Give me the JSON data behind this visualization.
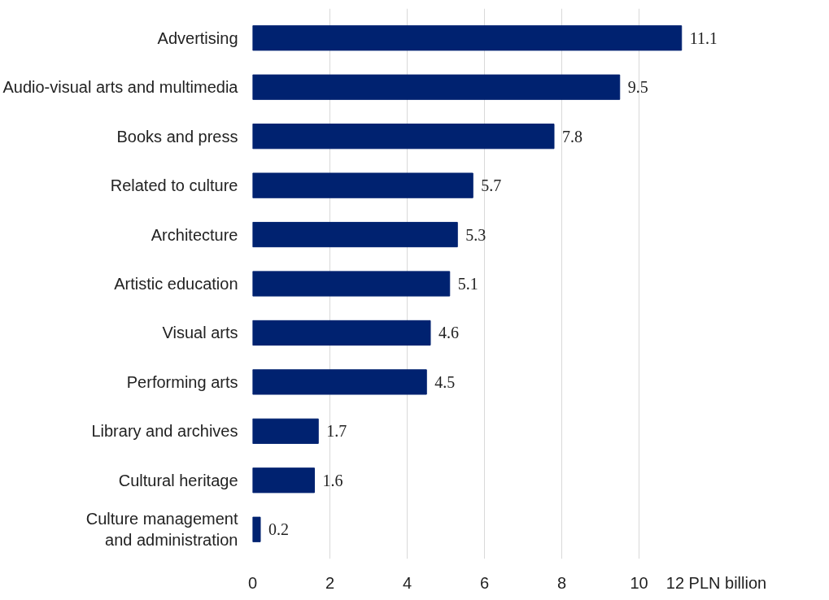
{
  "chart_data": {
    "type": "bar",
    "orientation": "horizontal",
    "categories": [
      "Advertising",
      "Audio-visual arts and multimedia",
      "Books and press",
      "Related to culture",
      "Architecture",
      "Artistic education",
      "Visual arts",
      "Performing arts",
      "Library and archives",
      "Cultural heritage",
      "Culture management\nand administration"
    ],
    "values": [
      11.1,
      9.5,
      7.8,
      5.7,
      5.3,
      5.1,
      4.6,
      4.5,
      1.7,
      1.6,
      0.2
    ],
    "color": "#002270",
    "xlim": [
      0,
      12
    ],
    "xticks": [
      0,
      2,
      4,
      6,
      8,
      10,
      {
        "value": 12,
        "label": "12 PLN billion"
      }
    ],
    "grid": "x",
    "data_labels": true
  }
}
